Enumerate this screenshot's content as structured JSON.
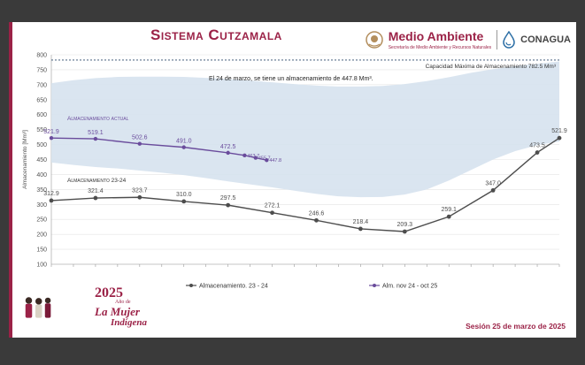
{
  "slide": {
    "title": "Sistema Cutzamala",
    "logos": {
      "medio_ambiente": "Medio Ambiente",
      "medio_ambiente_sub": "Secretaría de Medio Ambiente y Recursos Naturales",
      "conagua": "CONAGUA"
    },
    "session": "Sesión 25 de marzo de 2025",
    "badge": {
      "year": "2025",
      "line1": "Año de",
      "line2": "La Mujer",
      "line3": "Indígena"
    },
    "colors": {
      "accent": "#9b2247",
      "current_series": "#6a4c9c",
      "previous_series": "#4d4d4d",
      "range_band": "#d6e2ee"
    }
  },
  "chart_data": {
    "type": "line",
    "ylabel": "Almacenamiento [Mm³]",
    "ylim": [
      100,
      800
    ],
    "yticks": [
      100,
      150,
      200,
      250,
      300,
      350,
      400,
      450,
      500,
      550,
      600,
      650,
      700,
      750,
      800
    ],
    "grid": true,
    "capacity": {
      "value": 782.5,
      "label": "Capacidad Máxima de Almacenamiento 782.5 Mm³"
    },
    "annotation": "El 24 de marzo, se tiene un almacenamiento de 447.8 Mm³.",
    "x_count": 24,
    "range_band": {
      "upper": [
        705,
        715,
        722,
        726,
        727,
        727,
        726,
        723,
        719,
        714,
        708,
        702,
        697,
        694,
        694,
        696,
        702,
        712,
        725,
        740,
        752,
        762,
        770,
        778
      ],
      "lower": [
        440,
        432,
        425,
        420,
        413,
        406,
        398,
        388,
        377,
        367,
        357,
        346,
        335,
        327,
        324,
        325,
        333,
        350,
        380,
        415,
        450,
        478,
        498,
        510
      ]
    },
    "series": [
      {
        "name": "Almacenamiento 23 - 24",
        "legend": "Almacenamiento. 23 - 24",
        "chart_label": "Almacenamiento 23-24",
        "x": [
          0,
          2,
          4,
          6,
          8,
          10,
          12,
          14,
          16,
          18,
          20,
          22,
          23
        ],
        "values": [
          312.9,
          321.4,
          323.7,
          310.0,
          297.5,
          272.1,
          246.6,
          218.4,
          209.3,
          259.1,
          347.0,
          473.5,
          521.9
        ],
        "labels": [
          "312.9",
          "321.4",
          "323.7",
          "310.0",
          "297.5",
          "272.1",
          "246.6",
          "218.4",
          "209.3",
          "259.1",
          "347.0",
          "473.5",
          "521.9"
        ]
      },
      {
        "name": "Alm. nov 24 - oct 25",
        "legend": "Alm. nov 24 - oct 25",
        "chart_label": "Almacenamiento actual",
        "x": [
          0,
          2,
          4,
          6,
          8,
          8.75,
          9.25,
          9.75
        ],
        "values": [
          521.9,
          519.1,
          502.6,
          491.0,
          472.5,
          463.7,
          455.7,
          447.8
        ],
        "labels": [
          "521.9",
          "519.1",
          "502.6",
          "491.0",
          "472.5",
          "463.7",
          "455.7",
          "447.8"
        ]
      }
    ]
  }
}
